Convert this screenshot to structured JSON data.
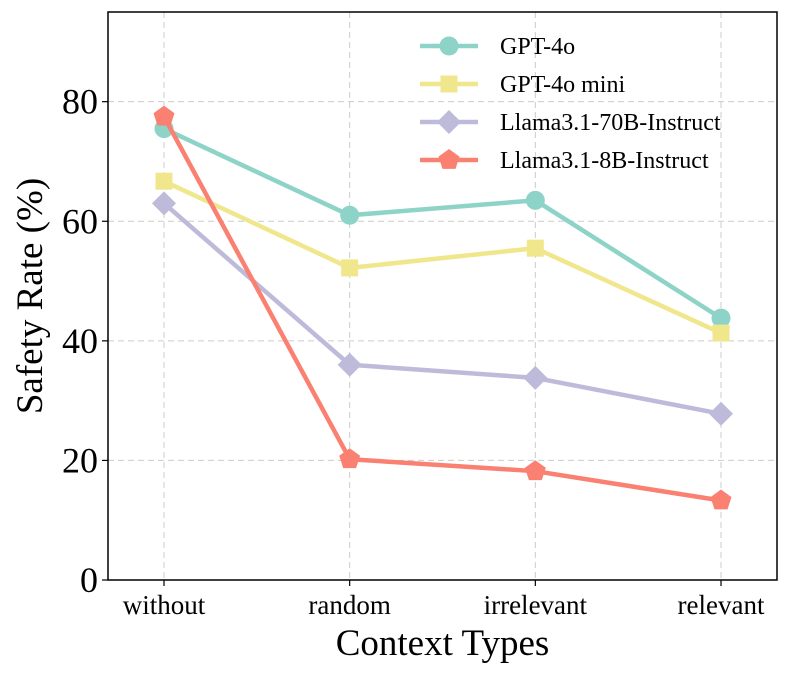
{
  "chart_data": {
    "type": "line",
    "title": "",
    "xlabel": "Context Types",
    "ylabel": "Safety Rate (%)",
    "categories": [
      "without",
      "random",
      "irrelevant",
      "relevant"
    ],
    "ylim": [
      0,
      95
    ],
    "yticks": [
      0,
      20,
      40,
      60,
      80
    ],
    "grid": true,
    "legend_position": "top-right",
    "series": [
      {
        "name": "GPT-4o",
        "color": "#8dd3c7",
        "marker": "circle",
        "values": [
          75.5,
          61.0,
          63.5,
          43.8
        ]
      },
      {
        "name": "GPT-4o mini",
        "color": "#f0e68c",
        "marker": "square",
        "values": [
          66.7,
          52.2,
          55.5,
          41.3
        ]
      },
      {
        "name": "Llama3.1-70B-Instruct",
        "color": "#bebada",
        "marker": "diamond",
        "values": [
          63.0,
          36.0,
          33.8,
          27.8
        ]
      },
      {
        "name": "Llama3.1-8B-Instruct",
        "color": "#fa8072",
        "marker": "pentagon",
        "values": [
          77.5,
          20.2,
          18.2,
          13.3
        ]
      }
    ]
  }
}
